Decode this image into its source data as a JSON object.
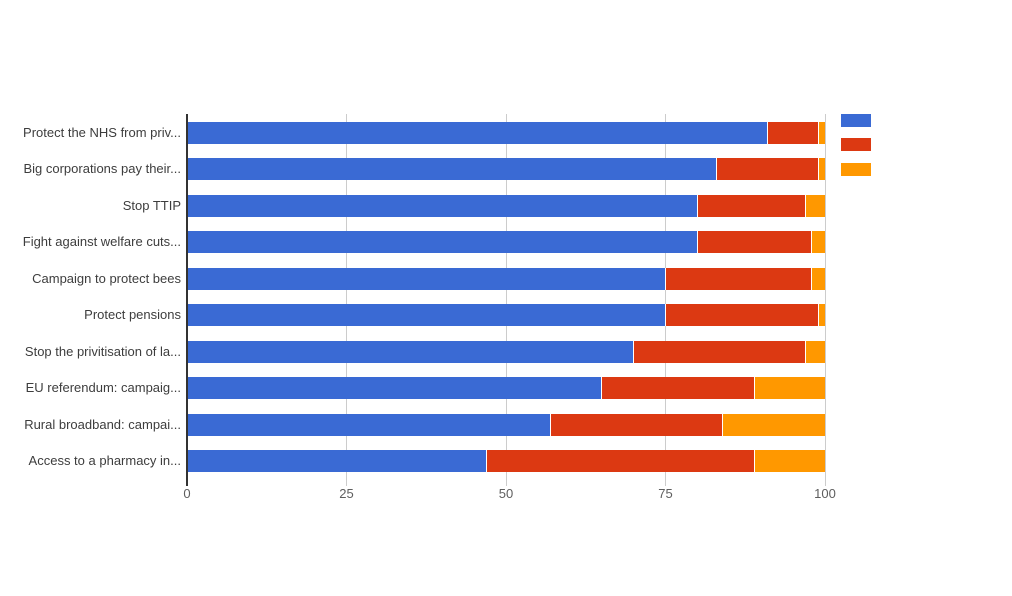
{
  "chart_data": {
    "type": "bar",
    "orientation": "horizontal",
    "stacked": true,
    "title": "",
    "categories": [
      "Protect the NHS from priv...",
      "Big corporations pay their...",
      "Stop TTIP",
      "Fight against welfare cuts...",
      "Campaign to protect bees",
      "Protect pensions",
      "Stop the privitisation of la...",
      "EU referendum: campaig...",
      "Rural broadband: campai...",
      "Access to a pharmacy in..."
    ],
    "series": [
      {
        "name": "",
        "color": "#3A6AD4",
        "values": [
          91,
          83,
          80,
          80,
          75,
          75,
          70,
          65,
          57,
          47
        ]
      },
      {
        "name": "",
        "color": "#DC3912",
        "values": [
          8,
          16,
          17,
          18,
          23,
          24,
          27,
          24,
          27,
          42
        ]
      },
      {
        "name": "",
        "color": "#FF9800",
        "values": [
          1,
          1,
          3,
          2,
          2,
          1,
          3,
          11,
          16,
          11
        ]
      }
    ],
    "x_axis": {
      "ticks": [
        0,
        25,
        50,
        75,
        100
      ],
      "min": 0,
      "max": 100
    },
    "y_axis_label": "",
    "x_axis_label": "",
    "grid": true,
    "legend": {
      "position": "right",
      "labels": [
        "",
        "",
        ""
      ]
    }
  }
}
